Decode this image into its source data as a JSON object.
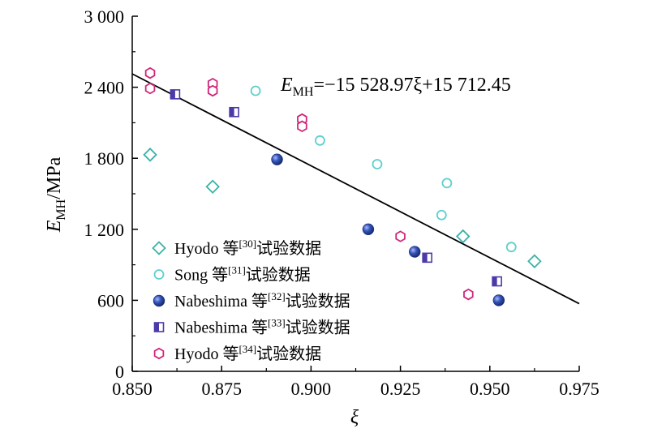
{
  "chart_data": {
    "type": "scatter",
    "title": "",
    "xlabel": "ξ",
    "ylabel": {
      "main": "E",
      "sub": "MH",
      "unit": "/MPa"
    },
    "xlim": [
      0.85,
      0.975
    ],
    "ylim": [
      0,
      3000
    ],
    "x_ticks": [
      0.85,
      0.875,
      0.9,
      0.925,
      0.95,
      0.975
    ],
    "x_tick_labels": [
      "0.850",
      "0.875",
      "0.900",
      "0.925",
      "0.950",
      "0.975"
    ],
    "y_ticks": [
      0,
      600,
      1200,
      1800,
      2400,
      3000
    ],
    "y_tick_labels": [
      "0",
      "600",
      "1 200",
      "1 800",
      "2 400",
      "3 000"
    ],
    "grid": false,
    "legend_position": "bottom-left",
    "series": [
      {
        "name": "Hyodo 等[30]试验数据",
        "legend": {
          "base": "Hyodo 等",
          "ref": "[30]",
          "tail": "试验数据"
        },
        "marker": "diamond-open",
        "color": "#3bb3a7",
        "x": [
          0.855,
          0.8725,
          0.9425,
          0.9625
        ],
        "y": [
          1830,
          1560,
          1140,
          930
        ]
      },
      {
        "name": "Song 等[31]试验数据",
        "legend": {
          "base": "Song 等",
          "ref": "[31]",
          "tail": "试验数据"
        },
        "marker": "circle-open",
        "color": "#5ecfcf",
        "x": [
          0.8845,
          0.9025,
          0.9185,
          0.938,
          0.9365,
          0.956
        ],
        "y": [
          2370,
          1950,
          1750,
          1590,
          1320,
          1050
        ]
      },
      {
        "name": "Nabeshima 等[32]试验数据",
        "legend": {
          "base": "Nabeshima 等",
          "ref": "[32]",
          "tail": "试验数据"
        },
        "marker": "sphere",
        "color": "#2f4fb0",
        "x": [
          0.8905,
          0.916,
          0.929,
          0.9525
        ],
        "y": [
          1790,
          1200,
          1010,
          600
        ]
      },
      {
        "name": "Nabeshima 等[33]试验数据",
        "legend": {
          "base": "Nabeshima 等",
          "ref": "[33]",
          "tail": "试验数据"
        },
        "marker": "square-half",
        "color": "#4b3aa8",
        "x": [
          0.862,
          0.8785,
          0.9325,
          0.952
        ],
        "y": [
          2340,
          2190,
          960,
          760
        ]
      },
      {
        "name": "Hyodo 等[34]试验数据",
        "legend": {
          "base": "Hyodo 等",
          "ref": "[34]",
          "tail": "试验数据"
        },
        "marker": "hexagon-open",
        "color": "#d0267a",
        "x": [
          0.855,
          0.855,
          0.8725,
          0.8725,
          0.8975,
          0.8975,
          0.925,
          0.944
        ],
        "y": [
          2520,
          2390,
          2430,
          2370,
          2130,
          2070,
          1140,
          650
        ]
      }
    ],
    "fit_line": {
      "slope": -15528.97,
      "intercept": 15712.45,
      "x_range": [
        0.85,
        0.975
      ],
      "label": {
        "lhs_main": "E",
        "lhs_sub": "MH",
        "rhs": "=−15 528.97ξ+15 712.45"
      }
    }
  }
}
